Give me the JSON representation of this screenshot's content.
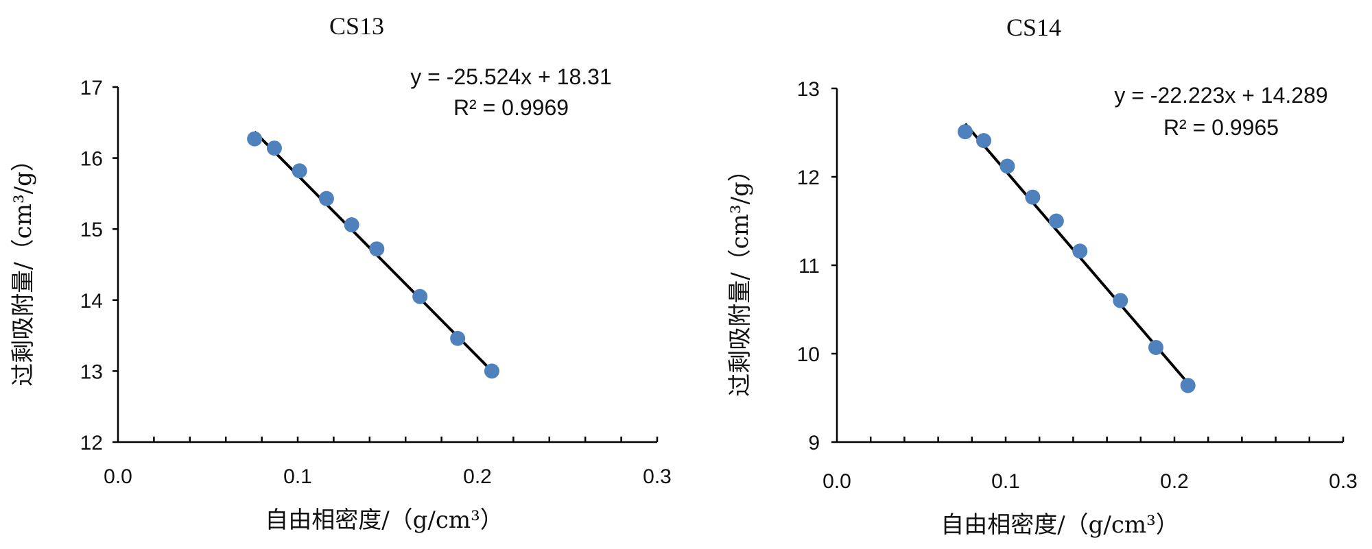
{
  "chart_data": [
    {
      "type": "scatter",
      "title": "CS13",
      "xlabel": "自由相密度/（g/cm³）",
      "ylabel": "过剩吸附量/（cm³/g）",
      "xlim": [
        0.0,
        0.3
      ],
      "ylim": [
        12,
        17
      ],
      "x_ticks": [
        "0.0",
        "0.1",
        "0.2",
        "0.3"
      ],
      "y_ticks": [
        "12",
        "13",
        "14",
        "15",
        "16",
        "17"
      ],
      "trendline_equation": "y = -25.524x + 18.31",
      "r_squared_label": "R² = 0.9969",
      "trendline": {
        "slope": -25.524,
        "intercept": 18.31,
        "x_range": [
          0.076,
          0.208
        ]
      },
      "marker_color": "#4f81bd",
      "line_color": "#000000",
      "series": [
        {
          "x": [
            0.076,
            0.087,
            0.101,
            0.116,
            0.13,
            0.144,
            0.168,
            0.189,
            0.208
          ],
          "y": [
            16.27,
            16.14,
            15.82,
            15.43,
            15.06,
            14.72,
            14.05,
            13.46,
            13.0
          ]
        }
      ]
    },
    {
      "type": "scatter",
      "title": "CS14",
      "xlabel": "自由相密度/（g/cm³）",
      "ylabel": "过剩吸附量/（cm³/g）",
      "xlim": [
        0.0,
        0.3
      ],
      "ylim": [
        9,
        13
      ],
      "x_ticks": [
        "0.0",
        "0.1",
        "0.2",
        "0.3"
      ],
      "y_ticks": [
        "9",
        "10",
        "11",
        "12",
        "13"
      ],
      "trendline_equation": "y = -22.223x + 14.289",
      "r_squared_label": "R² = 0.9965",
      "trendline": {
        "slope": -22.223,
        "intercept": 14.289,
        "x_range": [
          0.076,
          0.208
        ]
      },
      "marker_color": "#4f81bd",
      "line_color": "#000000",
      "series": [
        {
          "x": [
            0.076,
            0.087,
            0.101,
            0.116,
            0.13,
            0.144,
            0.168,
            0.189,
            0.208
          ],
          "y": [
            12.51,
            12.41,
            12.12,
            11.77,
            11.5,
            11.16,
            10.6,
            10.07,
            9.64
          ]
        }
      ]
    }
  ]
}
